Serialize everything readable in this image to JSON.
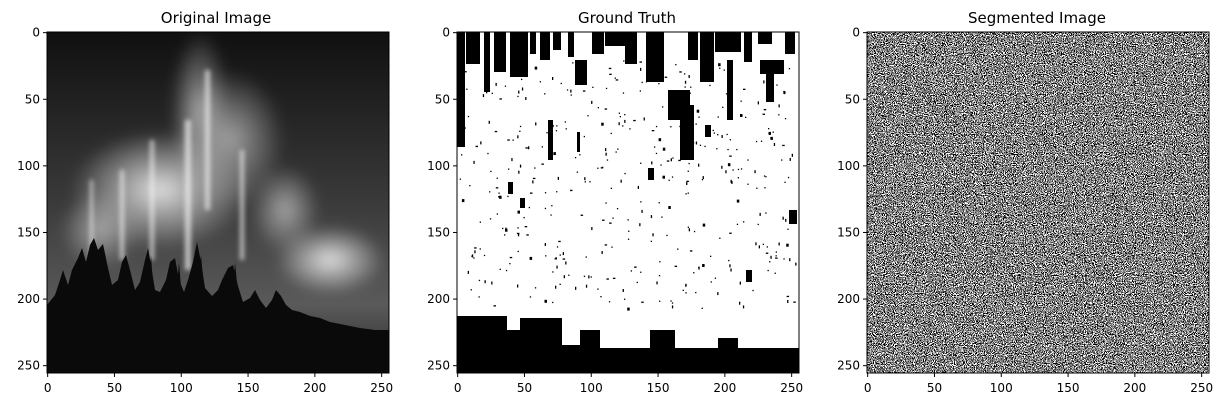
{
  "panels": [
    {
      "title": "Original Image",
      "image": "aurora borealis over dark forest silhouette (grayscale)",
      "x_ticks": [
        "0",
        "50",
        "100",
        "150",
        "200",
        "250"
      ],
      "y_ticks": [
        "0",
        "50",
        "100",
        "150",
        "200",
        "250"
      ]
    },
    {
      "title": "Ground Truth",
      "image": "binary mask: mostly white with black blocks along top edge and black band along bottom",
      "x_ticks": [
        "0",
        "50",
        "100",
        "150",
        "200",
        "250"
      ],
      "y_ticks": [
        "0",
        "50",
        "100",
        "150",
        "200",
        "250"
      ]
    },
    {
      "title": "Segmented Image",
      "image": "binary random noise pattern",
      "x_ticks": [
        "0",
        "50",
        "100",
        "150",
        "200",
        "250"
      ],
      "y_ticks": [
        "0",
        "50",
        "100",
        "150",
        "200",
        "250"
      ]
    }
  ]
}
